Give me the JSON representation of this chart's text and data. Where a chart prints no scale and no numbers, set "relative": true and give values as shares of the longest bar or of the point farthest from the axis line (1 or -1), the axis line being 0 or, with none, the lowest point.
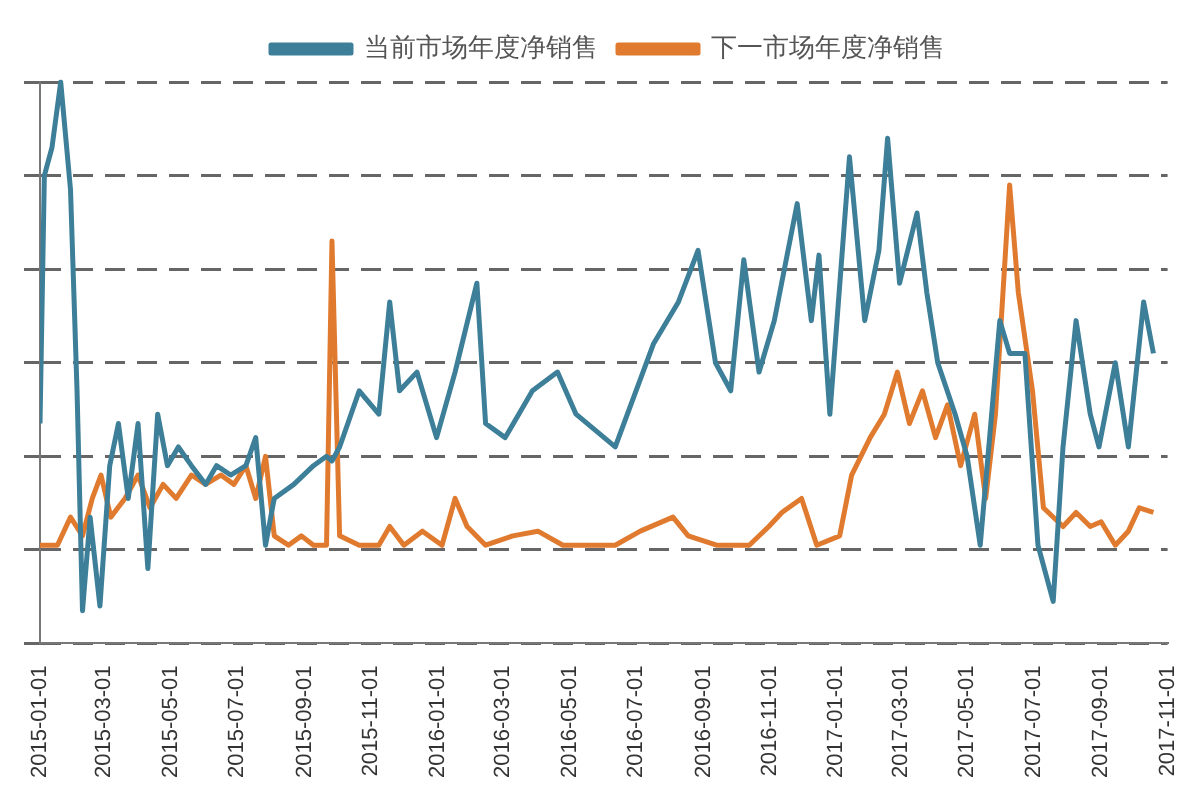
{
  "chart_data": {
    "type": "line",
    "relative": true,
    "grid": "y",
    "legend": "top",
    "line_style": "solid",
    "marker": "none",
    "xlim": [
      "2015-01-01",
      "2017-11-01"
    ],
    "xticks": [
      "2015-01-01",
      "2015-03-01",
      "2015-05-01",
      "2015-07-01",
      "2015-09-01",
      "2015-11-01",
      "2016-01-01",
      "2016-03-01",
      "2016-05-01",
      "2016-07-01",
      "2016-09-01",
      "2016-11-01",
      "2017-01-01",
      "2017-03-01",
      "2017-05-01",
      "2017-07-01",
      "2017-09-01",
      "2017-11-01"
    ],
    "series": [
      {
        "name": "当前市场年度净销售",
        "color": "#3d7f98",
        "x": [
          "2015-01-01",
          "2015-01-05",
          "2015-01-12",
          "2015-01-20",
          "2015-01-29",
          "2015-02-04",
          "2015-02-09",
          "2015-02-16",
          "2015-02-25",
          "2015-03-06",
          "2015-03-14",
          "2015-03-23",
          "2015-04-01",
          "2015-04-10",
          "2015-04-19",
          "2015-04-28",
          "2015-05-08",
          "2015-05-20",
          "2015-06-02",
          "2015-06-12",
          "2015-06-25",
          "2015-07-09",
          "2015-07-18",
          "2015-07-27",
          "2015-08-04",
          "2015-08-22",
          "2015-09-09",
          "2015-09-21",
          "2015-09-26",
          "2015-10-03",
          "2015-10-21",
          "2015-11-08",
          "2015-11-18",
          "2015-11-27",
          "2015-12-13",
          "2015-12-31",
          "2016-01-17",
          "2016-02-06",
          "2016-02-14",
          "2016-03-03",
          "2016-03-28",
          "2016-04-20",
          "2016-05-07",
          "2016-06-12",
          "2016-07-17",
          "2016-08-09",
          "2016-08-27",
          "2016-09-12",
          "2016-09-26",
          "2016-10-08",
          "2016-10-22",
          "2016-11-05",
          "2016-11-26",
          "2016-12-09",
          "2016-12-16",
          "2016-12-26",
          "2017-01-13",
          "2017-01-27",
          "2017-02-09",
          "2017-02-17",
          "2017-02-28",
          "2017-03-16",
          "2017-03-25",
          "2017-04-04",
          "2017-04-20",
          "2017-05-01",
          "2017-05-13",
          "2017-05-31",
          "2017-06-09",
          "2017-06-23",
          "2017-07-05",
          "2017-07-19",
          "2017-07-28",
          "2017-08-09",
          "2017-08-22",
          "2017-08-30",
          "2017-09-14",
          "2017-09-26",
          "2017-10-10",
          "2017-10-19"
        ],
        "values": [
          0.27,
          0.8,
          0.86,
          1.0,
          0.77,
          0.34,
          -0.13,
          0.07,
          -0.12,
          0.18,
          0.27,
          0.11,
          0.27,
          -0.04,
          0.29,
          0.18,
          0.22,
          0.18,
          0.14,
          0.18,
          0.16,
          0.18,
          0.24,
          0.01,
          0.11,
          0.14,
          0.18,
          0.2,
          0.19,
          0.22,
          0.34,
          0.29,
          0.53,
          0.34,
          0.38,
          0.24,
          0.38,
          0.57,
          0.27,
          0.24,
          0.34,
          0.38,
          0.29,
          0.22,
          0.44,
          0.53,
          0.64,
          0.4,
          0.34,
          0.62,
          0.38,
          0.49,
          0.74,
          0.49,
          0.63,
          0.29,
          0.84,
          0.49,
          0.64,
          0.88,
          0.57,
          0.72,
          0.55,
          0.4,
          0.29,
          0.2,
          0.01,
          0.49,
          0.42,
          0.42,
          0.01,
          -0.11,
          0.22,
          0.49,
          0.29,
          0.22,
          0.4,
          0.22,
          0.53,
          0.42
        ]
      },
      {
        "name": "下一市场年度净销售",
        "color": "#e07a2e",
        "x": [
          "2015-01-01",
          "2015-01-17",
          "2015-01-29",
          "2015-02-09",
          "2015-02-18",
          "2015-02-26",
          "2015-03-07",
          "2015-03-20",
          "2015-04-01",
          "2015-04-12",
          "2015-04-24",
          "2015-05-06",
          "2015-05-20",
          "2015-06-02",
          "2015-06-16",
          "2015-06-28",
          "2015-07-09",
          "2015-07-18",
          "2015-07-27",
          "2015-08-04",
          "2015-08-17",
          "2015-08-29",
          "2015-09-09",
          "2015-09-21",
          "2015-09-26",
          "2015-10-03",
          "2015-10-21",
          "2015-11-08",
          "2015-11-18",
          "2015-12-01",
          "2015-12-18",
          "2016-01-05",
          "2016-01-17",
          "2016-01-28",
          "2016-02-14",
          "2016-03-10",
          "2016-04-02",
          "2016-04-25",
          "2016-05-07",
          "2016-06-12",
          "2016-07-05",
          "2016-08-04",
          "2016-08-18",
          "2016-09-13",
          "2016-10-13",
          "2016-10-31",
          "2016-11-12",
          "2016-11-30",
          "2016-12-14",
          "2017-01-04",
          "2017-01-15",
          "2017-02-01",
          "2017-02-14",
          "2017-02-26",
          "2017-03-09",
          "2017-03-21",
          "2017-04-02",
          "2017-04-13",
          "2017-04-25",
          "2017-05-08",
          "2017-05-18",
          "2017-05-27",
          "2017-06-09",
          "2017-06-17",
          "2017-06-30",
          "2017-07-10",
          "2017-07-28",
          "2017-08-09",
          "2017-08-22",
          "2017-09-01",
          "2017-09-14",
          "2017-09-26",
          "2017-10-06",
          "2017-10-19"
        ],
        "values": [
          0.01,
          0.01,
          0.07,
          0.03,
          0.11,
          0.16,
          0.07,
          0.11,
          0.16,
          0.09,
          0.14,
          0.11,
          0.16,
          0.14,
          0.16,
          0.14,
          0.18,
          0.11,
          0.2,
          0.03,
          0.01,
          0.03,
          0.01,
          0.01,
          0.66,
          0.03,
          0.01,
          0.01,
          0.05,
          0.01,
          0.04,
          0.01,
          0.11,
          0.05,
          0.01,
          0.03,
          0.04,
          0.01,
          0.01,
          0.01,
          0.04,
          0.07,
          0.03,
          0.01,
          0.01,
          0.05,
          0.08,
          0.11,
          0.01,
          0.03,
          0.16,
          0.24,
          0.29,
          0.38,
          0.27,
          0.34,
          0.24,
          0.31,
          0.18,
          0.29,
          0.11,
          0.29,
          0.78,
          0.55,
          0.34,
          0.09,
          0.05,
          0.08,
          0.05,
          0.06,
          0.01,
          0.04,
          0.09,
          0.08
        ]
      }
    ]
  }
}
